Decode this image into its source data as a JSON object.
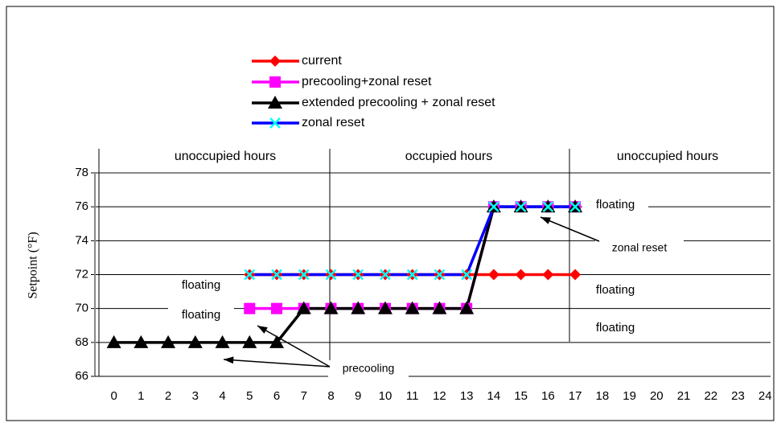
{
  "chart_data": {
    "type": "line",
    "y_label": "Setpoint (°F)",
    "x": [
      0,
      1,
      2,
      3,
      4,
      5,
      6,
      7,
      8,
      9,
      10,
      11,
      12,
      13,
      14,
      15,
      16,
      17,
      18,
      19,
      20,
      21,
      22,
      23,
      24
    ],
    "xlim": [
      -0.7,
      24.2
    ],
    "xticks": [
      0,
      1,
      2,
      3,
      4,
      5,
      6,
      7,
      8,
      9,
      10,
      11,
      12,
      13,
      14,
      15,
      16,
      17,
      18,
      19,
      20,
      21,
      22,
      23,
      24
    ],
    "ylim": [
      66,
      78
    ],
    "yticks": [
      66,
      68,
      70,
      72,
      74,
      76,
      78
    ],
    "grid": true,
    "series": [
      {
        "name": "current",
        "color": "#ff0000",
        "marker": "diamond",
        "values": [
          null,
          null,
          null,
          null,
          null,
          72,
          72,
          72,
          72,
          72,
          72,
          72,
          72,
          72,
          72,
          72,
          72,
          72,
          null,
          null,
          null,
          null,
          null,
          null,
          null
        ]
      },
      {
        "name": "precooling+zonal reset",
        "color": "#ff00ff",
        "marker": "square",
        "values": [
          null,
          null,
          null,
          null,
          null,
          70,
          70,
          70,
          70,
          70,
          70,
          70,
          70,
          70,
          76,
          76,
          76,
          76,
          null,
          null,
          null,
          null,
          null,
          null,
          null
        ]
      },
      {
        "name": "extended precooling + zonal reset",
        "color": "#000000",
        "marker": "triangle",
        "values": [
          68,
          68,
          68,
          68,
          68,
          68,
          68,
          70,
          70,
          70,
          70,
          70,
          70,
          70,
          76,
          76,
          76,
          76,
          null,
          null,
          null,
          null,
          null,
          null,
          null
        ]
      },
      {
        "name": "zonal reset",
        "color": "#0000ff",
        "marker": "x",
        "marker_color": "#00ffff",
        "values": [
          null,
          null,
          null,
          null,
          null,
          72,
          72,
          72,
          72,
          72,
          72,
          72,
          72,
          72,
          76,
          76,
          76,
          76,
          null,
          null,
          null,
          null,
          null,
          null,
          null
        ]
      }
    ],
    "annotations": [
      "unoccupied hours",
      "occupied hours",
      "unoccupied hours",
      "floating",
      "floating",
      "floating",
      "floating",
      "floating",
      "zonal reset",
      "precooling"
    ]
  }
}
